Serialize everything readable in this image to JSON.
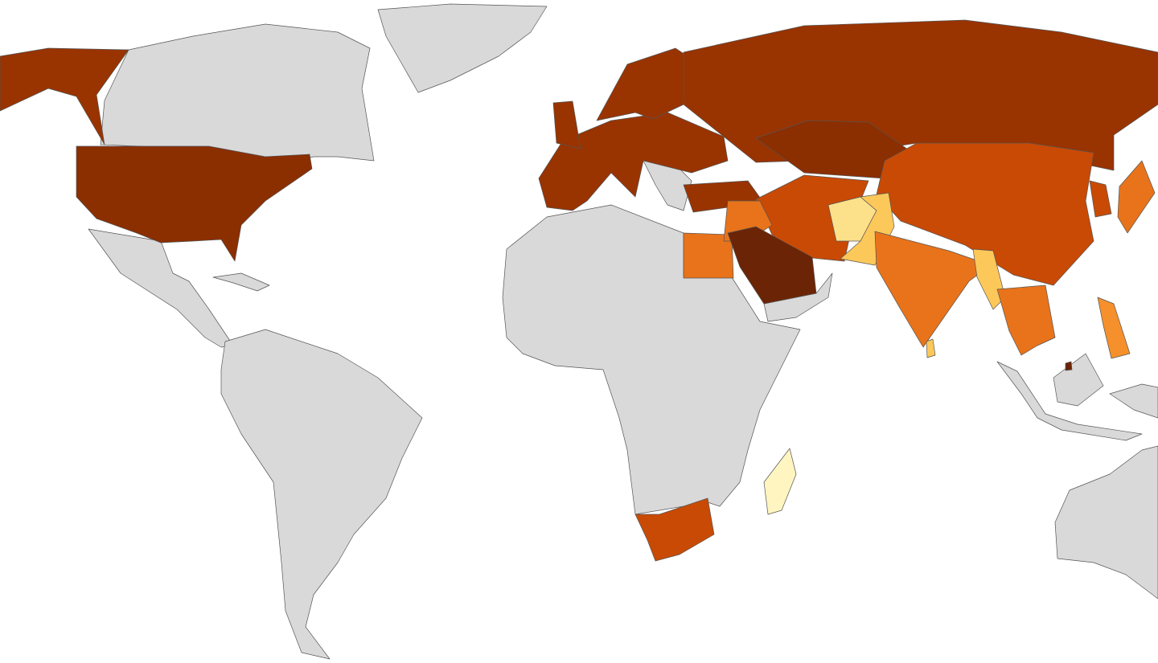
{
  "map": {
    "no_data_color": "#d9d9d9",
    "border_color": "#555555",
    "palette": [
      "#fff5c0",
      "#fde08a",
      "#fdc85a",
      "#f5902c",
      "#e8731b",
      "#c94a05",
      "#993300",
      "#8b2e00",
      "#6b2405"
    ]
  }
}
